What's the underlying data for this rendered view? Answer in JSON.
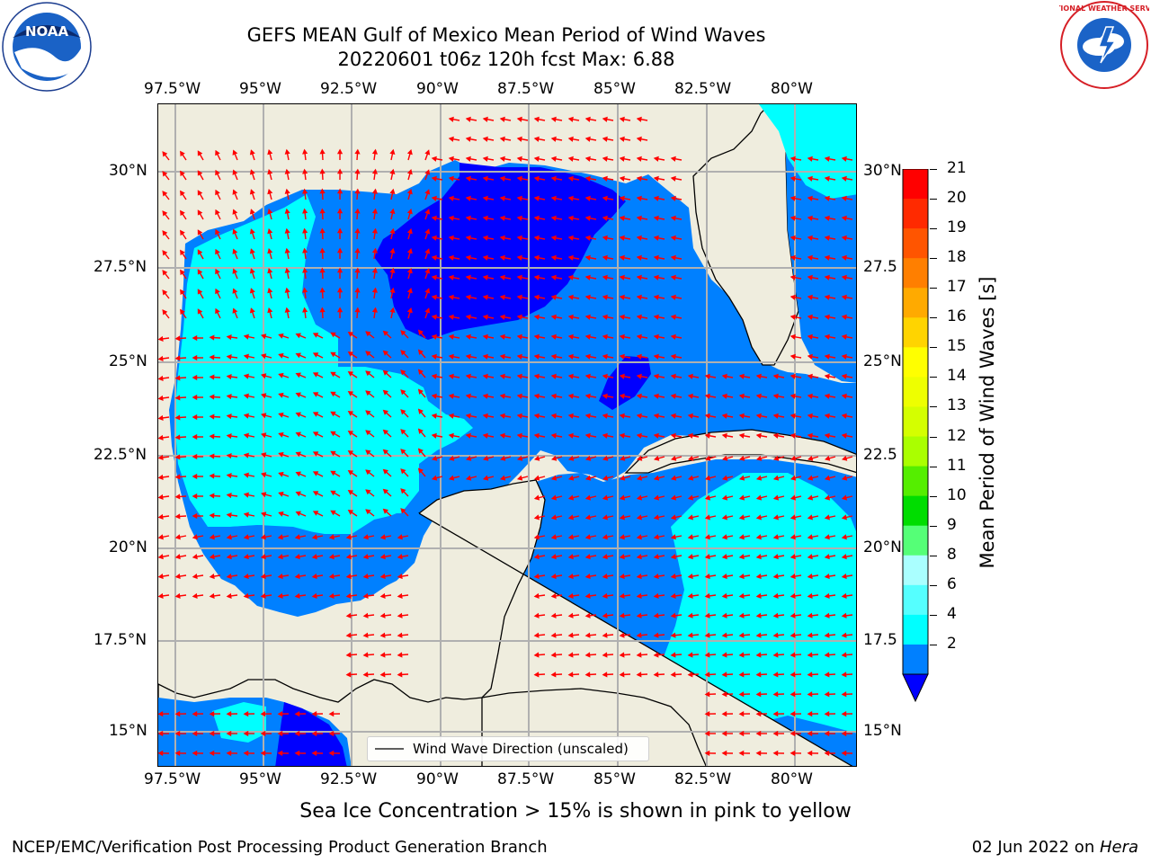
{
  "header": {
    "title": "GEFS MEAN Gulf of Mexico Mean Period of Wind Waves",
    "run_info": "20220601 t06z 120h fcst   Max: 6.88"
  },
  "logos": {
    "noaa_text": "NOAA",
    "noaa_ring": "NATIONAL OCEANIC AND ATMOSPHERIC ADMINISTRATION · U.S. DEPARTMENT OF COMMERCE",
    "nws_ring": "NATIONAL WEATHER SERVICE"
  },
  "map": {
    "lon_labels": [
      "97.5°W",
      "95°W",
      "92.5°W",
      "90°W",
      "87.5°W",
      "85°W",
      "82.5°W",
      "80°W"
    ],
    "lat_labels_left": [
      "30°N",
      "27.5°N",
      "25°N",
      "22.5°N",
      "20°N",
      "17.5°N",
      "15°N"
    ],
    "lat_labels_right": [
      "30°N",
      "27.5",
      "25°N",
      "22.5",
      "20°N",
      "17.5",
      "15°N"
    ],
    "legend_label": "Wind Wave Direction (unscaled)",
    "colors": {
      "land": "#efedde",
      "coast": "#000000",
      "grid": "#b0b0b0",
      "arrow": "#ff0000",
      "band_0_2": "#0000ff",
      "band_2_4": "#0080ff",
      "band_4_6": "#00ffff"
    }
  },
  "colorbar": {
    "label": "Mean Period of Wind Waves [s]",
    "ticks": [
      "21",
      "20",
      "19",
      "18",
      "17",
      "16",
      "15",
      "14",
      "13",
      "12",
      "11",
      "10",
      "9",
      "8",
      "6",
      "4",
      "2"
    ],
    "colors": [
      "#ff0000",
      "#ff2a00",
      "#ff5500",
      "#ff7f00",
      "#ffaa00",
      "#ffd400",
      "#ffff00",
      "#eeff00",
      "#d4ff00",
      "#aaff00",
      "#55ee00",
      "#00dd00",
      "#55ff77",
      "#aaffff",
      "#55ffff",
      "#00ffff",
      "#0080ff"
    ],
    "under_color": "#0000ff"
  },
  "subtitle": "Sea Ice Concentration > 15% is shown in pink to yellow",
  "footer": {
    "left": "NCEP/EMC/Verification Post Processing Product Generation Branch",
    "right_date": "02 Jun 2022 on ",
    "right_machine": "Hera"
  }
}
